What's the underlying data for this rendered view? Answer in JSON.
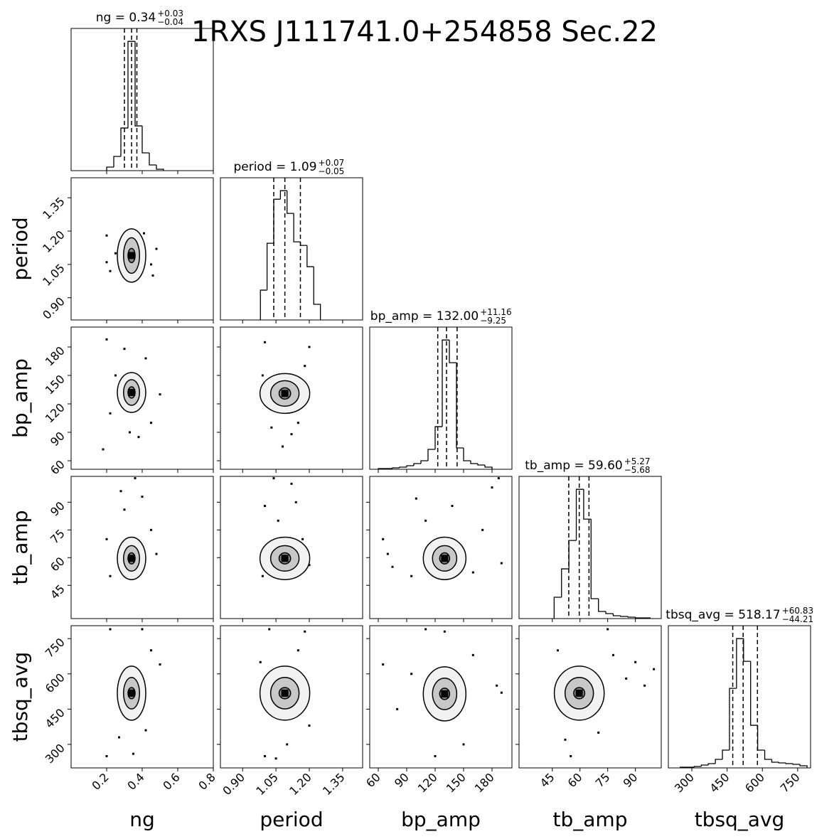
{
  "chart_data": {
    "type": "corner",
    "title": "1RXS J111741.0+254858 Sec.22",
    "params": [
      {
        "name": "ng",
        "title_main": "ng = 0.34",
        "title_plus": "+0.03",
        "title_minus": "−0.04",
        "lim": [
          0,
          0.8
        ],
        "ticks": [
          0.2,
          0.4,
          0.6,
          0.8
        ],
        "quantiles": [
          0.3,
          0.34,
          0.37
        ],
        "bins": [
          0.2,
          0.24,
          0.28,
          0.32,
          0.36,
          0.4,
          0.44,
          0.48,
          0.52
        ],
        "counts": [
          5,
          20,
          60,
          182,
          63,
          25,
          8,
          2
        ],
        "panels": []
      },
      {
        "name": "period",
        "title_main": "period = 1.09",
        "title_plus": "+0.07",
        "title_minus": "−0.05",
        "lim": [
          0.8,
          1.44
        ],
        "ticks": [
          {
            "value": 0.9,
            "label": "0.90"
          },
          {
            "value": 1.05,
            "label": "1.05"
          },
          {
            "value": 1.2,
            "label": "1.20"
          },
          {
            "value": 1.35,
            "label": "1.35"
          }
        ],
        "quantiles": [
          1.04,
          1.09,
          1.16
        ],
        "bins": [
          0.98,
          1.01,
          1.04,
          1.07,
          1.1,
          1.13,
          1.16,
          1.19,
          1.22,
          1.25
        ],
        "counts": [
          42,
          108,
          170,
          182,
          150,
          110,
          105,
          75,
          22
        ],
        "panels": [
          {
            "center": [
              0.34,
              1.09
            ],
            "contours": [
              [
                0.08,
                0.12
              ],
              [
                0.045,
                0.08
              ],
              [
                0.02,
                0.032
              ]
            ],
            "points": [
              [
                0.2,
                1.18
              ],
              [
                0.22,
                1.02
              ],
              [
                0.45,
                1.05
              ],
              [
                0.48,
                1.12
              ],
              [
                0.41,
                1.19
              ],
              [
                0.25,
                1.1
              ],
              [
                0.46,
                1.0
              ],
              [
                0.2,
                1.06
              ]
            ]
          }
        ]
      },
      {
        "name": "bp_amp",
        "title_main": "bp_amp = 132.00",
        "title_plus": "+11.16",
        "title_minus": "−9.25",
        "lim": [
          51,
          201
        ],
        "ticks": [
          60,
          90,
          120,
          150,
          180
        ],
        "quantiles": [
          122.75,
          132,
          143.16
        ],
        "bins": [
          60,
          67.5,
          75,
          82.5,
          90,
          97.5,
          105,
          112.5,
          120,
          127.5,
          135,
          142.5,
          150,
          157.5,
          165,
          172.5,
          180
        ],
        "counts": [
          1,
          1,
          2,
          3,
          5,
          8,
          12,
          28,
          60,
          182,
          150,
          30,
          12,
          8,
          6,
          3
        ],
        "panels": [
          {
            "center": [
              0.34,
              132
            ],
            "contours": [
              [
                0.08,
                21
              ],
              [
                0.045,
                13.5
              ],
              [
                0.02,
                6
              ]
            ],
            "points": [
              [
                0.2,
                188
              ],
              [
                0.18,
                72
              ],
              [
                0.45,
                100
              ],
              [
                0.38,
                85
              ],
              [
                0.3,
                178
              ],
              [
                0.5,
                130
              ],
              [
                0.22,
                110
              ],
              [
                0.42,
                168
              ],
              [
                0.33,
                90
              ],
              [
                0.25,
                150
              ]
            ]
          },
          {
            "center": [
              1.09,
              131
            ],
            "contours": [
              [
                0.112,
                21
              ],
              [
                0.064,
                13.5
              ],
              [
                0.026,
                6
              ]
            ],
            "points": [
              [
                1.0,
                185
              ],
              [
                1.08,
                75
              ],
              [
                1.2,
                180
              ],
              [
                1.03,
                95
              ],
              [
                1.15,
                100
              ],
              [
                1.18,
                160
              ],
              [
                0.99,
                150
              ],
              [
                1.12,
                88
              ]
            ]
          }
        ]
      },
      {
        "name": "tb_amp",
        "title_main": "tb_amp = 59.60",
        "title_plus": "+5.27",
        "title_minus": "−5.68",
        "lim": [
          27,
          104
        ],
        "ticks": [
          45,
          60,
          75,
          90
        ],
        "quantiles": [
          53.92,
          59.6,
          64.87
        ],
        "bins": [
          46,
          50,
          54,
          58,
          62,
          66,
          70,
          74,
          78,
          82,
          86,
          90,
          94,
          98
        ],
        "counts": [
          30,
          70,
          110,
          182,
          140,
          28,
          10,
          7,
          4,
          3,
          2,
          1,
          1
        ],
        "panels": [
          {
            "center": [
              0.34,
              59.6
            ],
            "contours": [
              [
                0.08,
                11.5
              ],
              [
                0.045,
                6.9
              ],
              [
                0.02,
                3
              ]
            ],
            "points": [
              [
                0.36,
                103
              ],
              [
                0.28,
                96
              ],
              [
                0.2,
                70
              ],
              [
                0.45,
                75
              ],
              [
                0.4,
                93
              ],
              [
                0.22,
                50
              ],
              [
                0.48,
                62
              ],
              [
                0.3,
                86
              ]
            ]
          },
          {
            "center": [
              1.09,
              59.6
            ],
            "contours": [
              [
                0.112,
                11.5
              ],
              [
                0.064,
                6.9
              ],
              [
                0.026,
                3
              ]
            ],
            "points": [
              [
                1.04,
                103
              ],
              [
                1.12,
                100
              ],
              [
                1.0,
                88
              ],
              [
                1.2,
                56
              ],
              [
                1.06,
                80
              ],
              [
                1.17,
                70
              ],
              [
                0.99,
                50
              ],
              [
                1.14,
                90
              ]
            ]
          },
          {
            "center": [
              130,
              59.6
            ],
            "contours": [
              [
                22.5,
                11.5
              ],
              [
                12.8,
                6.9
              ],
              [
                5.25,
                3
              ]
            ],
            "points": [
              [
                187,
                103
              ],
              [
                180,
                98
              ],
              [
                70,
                62
              ],
              [
                75,
                55
              ],
              [
                100,
                92
              ],
              [
                170,
                75
              ],
              [
                160,
                52
              ],
              [
                95,
                50
              ],
              [
                138,
                88
              ],
              [
                110,
                80
              ],
              [
                190,
                57
              ],
              [
                65,
                70
              ]
            ]
          }
        ]
      },
      {
        "name": "tbsq_avg",
        "title_main": "tbsq_avg = 518.17",
        "title_plus": "+60.83",
        "title_minus": "−44.21",
        "lim": [
          200,
          805
        ],
        "ticks": [
          300,
          450,
          600,
          750
        ],
        "quantiles": [
          473.96,
          518.17,
          579
        ],
        "bins": [
          250,
          280,
          310,
          340,
          370,
          400,
          430,
          460,
          490,
          520,
          550,
          580,
          610,
          640,
          670,
          700,
          730,
          760,
          790
        ],
        "counts": [
          1,
          1,
          2,
          4,
          6,
          12,
          25,
          112,
          182,
          150,
          60,
          25,
          12,
          8,
          7,
          6,
          5,
          3
        ],
        "panels": [
          {
            "center": [
              0.34,
              518
            ],
            "contours": [
              [
                0.08,
                115
              ],
              [
                0.045,
                67
              ],
              [
                0.02,
                24
              ]
            ],
            "points": [
              [
                0.2,
                250
              ],
              [
                0.22,
                790
              ],
              [
                0.4,
                790
              ],
              [
                0.35,
                260
              ],
              [
                0.45,
                700
              ],
              [
                0.5,
                640
              ],
              [
                0.27,
                330
              ],
              [
                0.42,
                360
              ]
            ]
          },
          {
            "center": [
              1.09,
              518
            ],
            "contours": [
              [
                0.112,
                115
              ],
              [
                0.064,
                67
              ],
              [
                0.026,
                24
              ]
            ],
            "points": [
              [
                1.0,
                250
              ],
              [
                1.02,
                790
              ],
              [
                1.18,
                780
              ],
              [
                1.1,
                300
              ],
              [
                1.15,
                700
              ],
              [
                0.98,
                650
              ],
              [
                1.2,
                380
              ],
              [
                1.05,
                240
              ]
            ]
          },
          {
            "center": [
              130,
              515
            ],
            "contours": [
              [
                22.5,
                115
              ],
              [
                12.8,
                67
              ],
              [
                5.25,
                24
              ]
            ],
            "points": [
              [
                65,
                640
              ],
              [
                185,
                550
              ],
              [
                110,
                790
              ],
              [
                160,
                680
              ],
              [
                120,
                250
              ],
              [
                150,
                300
              ],
              [
                80,
                450
              ],
              [
                190,
                520
              ],
              [
                130,
                780
              ],
              [
                95,
                600
              ]
            ]
          },
          {
            "center": [
              59.6,
              518
            ],
            "contours": [
              [
                13.5,
                115
              ],
              [
                7.7,
                67
              ],
              [
                3,
                24
              ]
            ],
            "points": [
              [
                100,
                620
              ],
              [
                95,
                550
              ],
              [
                78,
                680
              ],
              [
                55,
                250
              ],
              [
                75,
                790
              ],
              [
                48,
                700
              ],
              [
                85,
                580
              ],
              [
                52,
                320
              ],
              [
                70,
                350
              ],
              [
                90,
                650
              ]
            ]
          }
        ]
      }
    ]
  }
}
